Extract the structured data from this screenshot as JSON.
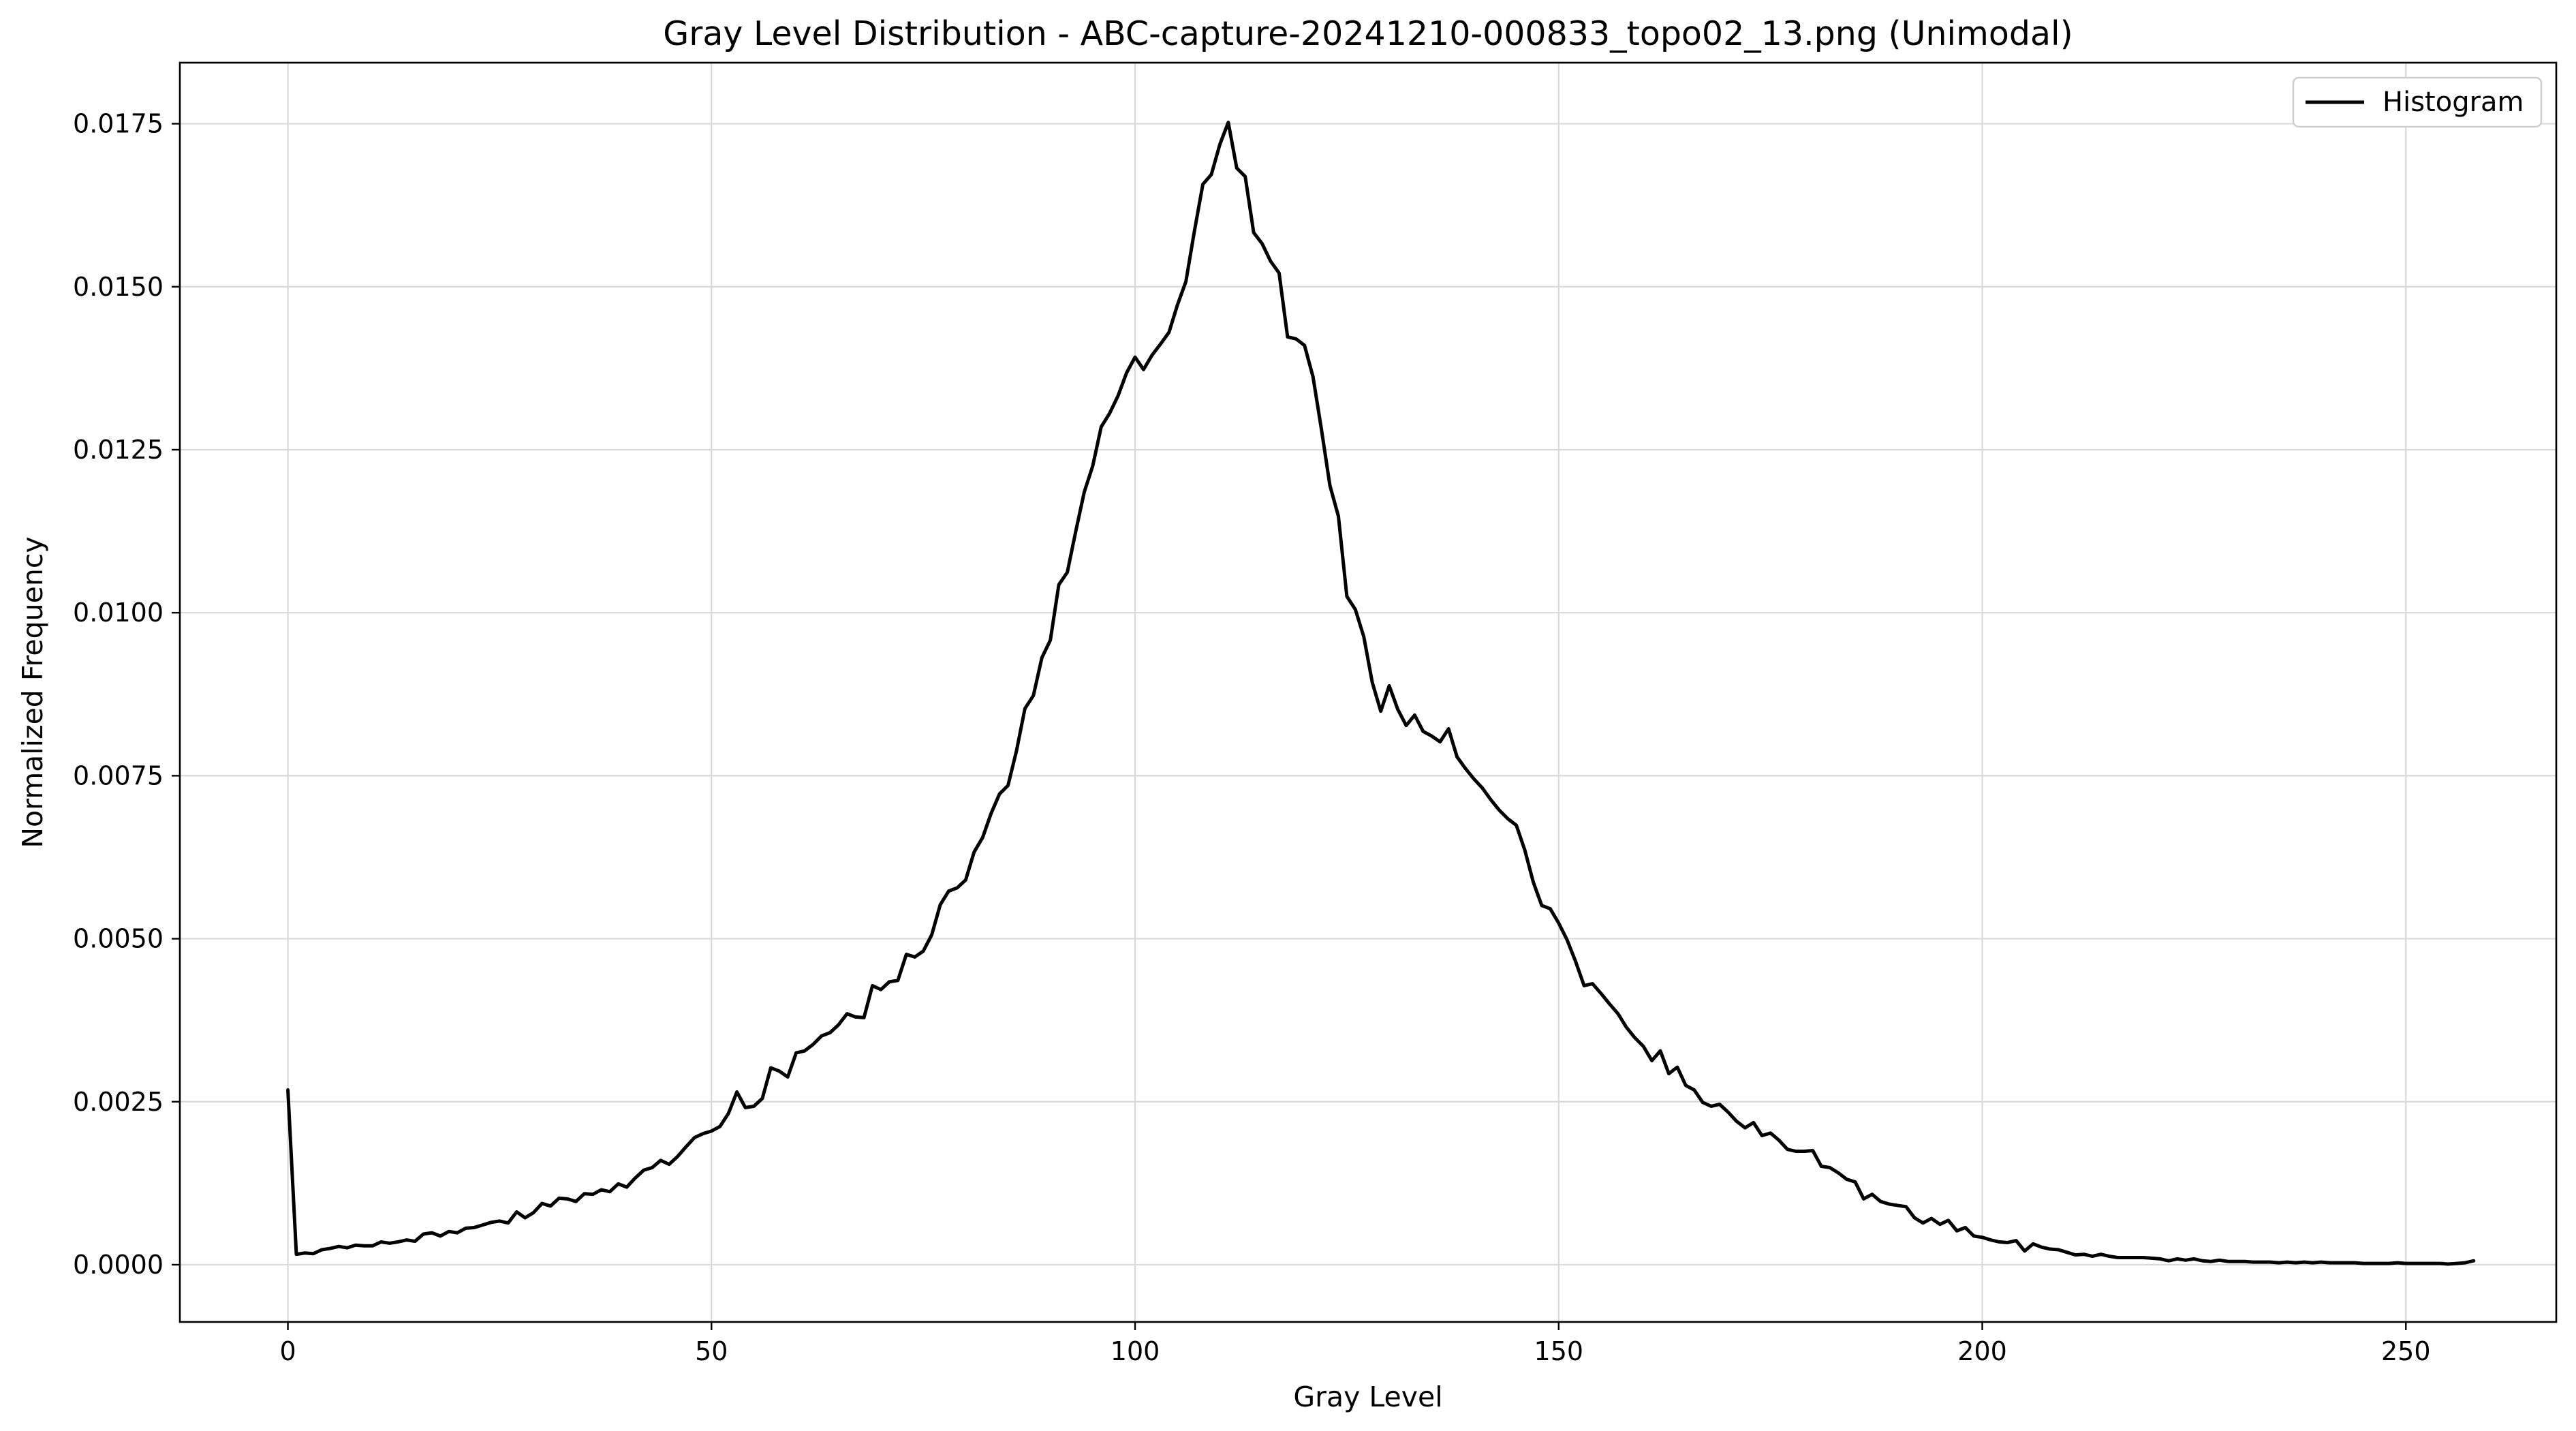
{
  "chart_data": {
    "type": "line",
    "title": "Gray Level Distribution - ABC-capture-20241210-000833_topo02_13.png (Unimodal)",
    "xlabel": "Gray Level",
    "ylabel": "Normalized Frequency",
    "xlim": [
      -12.75,
      267.75
    ],
    "ylim": [
      -0.000878,
      0.018436
    ],
    "xticks": [
      0,
      50,
      100,
      150,
      200,
      250
    ],
    "xtick_labels": [
      "0",
      "50",
      "100",
      "150",
      "200",
      "250"
    ],
    "yticks": [
      0.0,
      0.0025,
      0.005,
      0.0075,
      0.01,
      0.0125,
      0.015,
      0.0175
    ],
    "ytick_labels": [
      "0.0000",
      "0.0025",
      "0.0050",
      "0.0075",
      "0.0100",
      "0.0125",
      "0.0150",
      "0.0175"
    ],
    "grid": true,
    "legend_position": "top-right",
    "series": [
      {
        "name": "Histogram",
        "color": "#000000",
        "x_start": 0,
        "x_step": 1,
        "values": [
          0.00268,
          0.00016,
          0.00018,
          0.00017,
          0.00023,
          0.00025,
          0.00028,
          0.00026,
          0.0003,
          0.00029,
          0.00029,
          0.00035,
          0.00033,
          0.00035,
          0.00038,
          0.00036,
          0.00047,
          0.00049,
          0.00044,
          0.00051,
          0.00049,
          0.00056,
          0.00057,
          0.00061,
          0.00065,
          0.00067,
          0.00064,
          0.00081,
          0.00072,
          0.0008,
          0.00094,
          0.0009,
          0.00102,
          0.00101,
          0.00097,
          0.00109,
          0.00108,
          0.00115,
          0.00112,
          0.00124,
          0.00119,
          0.00133,
          0.00145,
          0.00149,
          0.0016,
          0.00154,
          0.00166,
          0.00181,
          0.00195,
          0.00201,
          0.00205,
          0.00212,
          0.00232,
          0.00265,
          0.00241,
          0.00243,
          0.00255,
          0.00302,
          0.00297,
          0.00288,
          0.00325,
          0.00328,
          0.00338,
          0.00351,
          0.00356,
          0.00368,
          0.00385,
          0.0038,
          0.00379,
          0.00428,
          0.00422,
          0.00434,
          0.00436,
          0.00476,
          0.00472,
          0.00481,
          0.00506,
          0.00552,
          0.00573,
          0.00578,
          0.0059,
          0.00633,
          0.00655,
          0.00692,
          0.00722,
          0.00735,
          0.00788,
          0.00853,
          0.00873,
          0.00931,
          0.00958,
          0.01043,
          0.01062,
          0.01125,
          0.01185,
          0.01225,
          0.01285,
          0.01306,
          0.01333,
          0.01368,
          0.01392,
          0.01373,
          0.01395,
          0.01412,
          0.0143,
          0.01472,
          0.01508,
          0.01585,
          0.01657,
          0.01672,
          0.01718,
          0.01752,
          0.01682,
          0.01669,
          0.01583,
          0.01566,
          0.01539,
          0.01521,
          0.01423,
          0.0142,
          0.0141,
          0.01362,
          0.01281,
          0.01195,
          0.01148,
          0.01025,
          0.01005,
          0.00963,
          0.00893,
          0.00849,
          0.00888,
          0.00852,
          0.00827,
          0.00843,
          0.00818,
          0.00811,
          0.00802,
          0.00822,
          0.00779,
          0.00761,
          0.00745,
          0.00731,
          0.00713,
          0.00697,
          0.00684,
          0.00674,
          0.00636,
          0.00587,
          0.00551,
          0.00546,
          0.00524,
          0.00498,
          0.00465,
          0.00428,
          0.00431,
          0.00416,
          0.004,
          0.00385,
          0.00364,
          0.00348,
          0.00335,
          0.00313,
          0.00328,
          0.00293,
          0.00303,
          0.00275,
          0.00268,
          0.00249,
          0.00243,
          0.00246,
          0.00234,
          0.0022,
          0.0021,
          0.00218,
          0.00198,
          0.00202,
          0.00191,
          0.00177,
          0.00174,
          0.00174,
          0.00175,
          0.00151,
          0.00149,
          0.00141,
          0.00131,
          0.00127,
          0.00101,
          0.00108,
          0.00097,
          0.00093,
          0.00091,
          0.00089,
          0.00072,
          0.00064,
          0.00071,
          0.00062,
          0.00068,
          0.00052,
          0.00057,
          0.00044,
          0.00042,
          0.00038,
          0.00035,
          0.00034,
          0.00037,
          0.00021,
          0.00032,
          0.00027,
          0.00024,
          0.00023,
          0.00019,
          0.00015,
          0.00016,
          0.00013,
          0.00016,
          0.00013,
          0.00011,
          0.00011,
          0.00011,
          0.00011,
          0.0001,
          9e-05,
          6e-05,
          9e-05,
          7e-05,
          9e-05,
          6e-05,
          5e-05,
          7e-05,
          5e-05,
          5e-05,
          5e-05,
          4e-05,
          4e-05,
          4e-05,
          3e-05,
          4e-05,
          3e-05,
          4e-05,
          3e-05,
          4e-05,
          3e-05,
          3e-05,
          3e-05,
          3e-05,
          2e-05,
          2e-05,
          2e-05,
          2e-05,
          3e-05,
          2e-05,
          2e-05,
          2e-05,
          2e-05,
          2e-05,
          1e-05,
          2e-05,
          3e-05,
          6e-05
        ]
      }
    ]
  }
}
